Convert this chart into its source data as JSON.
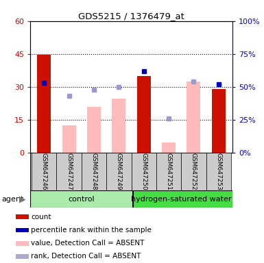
{
  "title": "GDS5215 / 1376479_at",
  "samples": [
    "GSM647246",
    "GSM647247",
    "GSM647248",
    "GSM647249",
    "GSM647250",
    "GSM647251",
    "GSM647252",
    "GSM647253"
  ],
  "red_bars": [
    44.5,
    null,
    null,
    null,
    35.0,
    null,
    null,
    29.0
  ],
  "pink_bars": [
    null,
    12.5,
    21.0,
    24.5,
    null,
    4.5,
    32.5,
    null
  ],
  "rank_vals_pct": [
    53.0,
    43.0,
    48.0,
    50.0,
    62.0,
    26.0,
    54.0,
    52.0
  ],
  "rank_is_filled": [
    true,
    false,
    false,
    false,
    true,
    false,
    false,
    true
  ],
  "left_yticks": [
    0,
    15,
    30,
    45,
    60
  ],
  "right_yticks": [
    0,
    25,
    50,
    75,
    100
  ],
  "ylim_left": [
    0,
    60
  ],
  "ylim_right": [
    0,
    100
  ],
  "left_tick_color": "#cc0000",
  "right_tick_color": "#0000cc",
  "bar_width": 0.55,
  "ctrl_color": "#aaeaaa",
  "hydro_color": "#44dd44",
  "gray_bg": "#cccccc"
}
